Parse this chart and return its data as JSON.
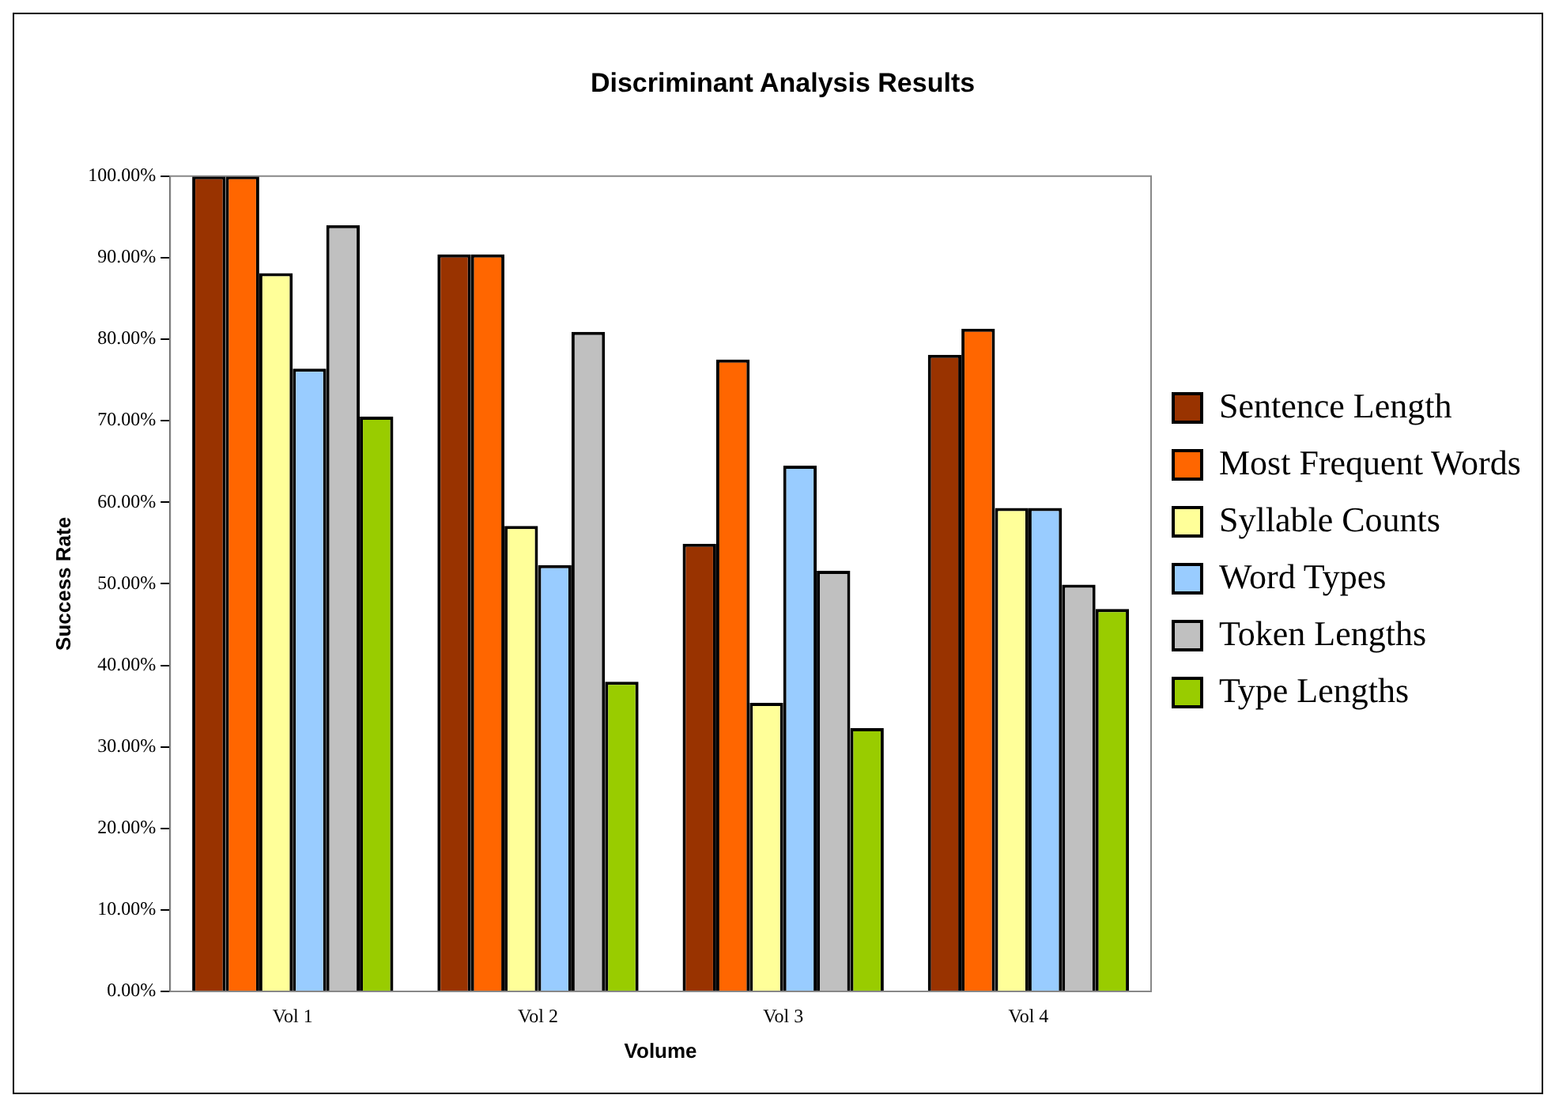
{
  "chart_data": {
    "type": "bar",
    "title": "Discriminant Analysis Results",
    "xlabel": "Volume",
    "ylabel": "Success Rate",
    "categories": [
      "Vol 1",
      "Vol 2",
      "Vol 3",
      "Vol 4"
    ],
    "series": [
      {
        "name": "Sentence Length",
        "color": "#993300",
        "values": [
          100,
          90.4,
          54.9,
          78.1
        ]
      },
      {
        "name": "Most Frequent Words",
        "color": "#ff6600",
        "values": [
          100,
          90.4,
          77.5,
          81.3
        ]
      },
      {
        "name": "Syllable Counts",
        "color": "#ffff99",
        "values": [
          88.1,
          57.1,
          35.4,
          59.3
        ]
      },
      {
        "name": "Word Types",
        "color": "#99ccff",
        "values": [
          76.4,
          52.3,
          64.5,
          59.3
        ]
      },
      {
        "name": "Token Lengths",
        "color": "#c0c0c0",
        "values": [
          94.0,
          80.9,
          51.6,
          49.9
        ]
      },
      {
        "name": "Type Lengths",
        "color": "#99cc00",
        "values": [
          70.5,
          38.0,
          32.3,
          46.9
        ]
      }
    ],
    "ylim": [
      0,
      100
    ],
    "yticks": [
      {
        "value": 0,
        "label": "0.00%"
      },
      {
        "value": 10,
        "label": "10.00%"
      },
      {
        "value": 20,
        "label": "20.00%"
      },
      {
        "value": 30,
        "label": "30.00%"
      },
      {
        "value": 40,
        "label": "40.00%"
      },
      {
        "value": 50,
        "label": "50.00%"
      },
      {
        "value": 60,
        "label": "60.00%"
      },
      {
        "value": 70,
        "label": "70.00%"
      },
      {
        "value": 80,
        "label": "80.00%"
      },
      {
        "value": 90,
        "label": "90.00%"
      },
      {
        "value": 100,
        "label": "100.00%"
      }
    ],
    "grid": false,
    "legend": "right"
  }
}
